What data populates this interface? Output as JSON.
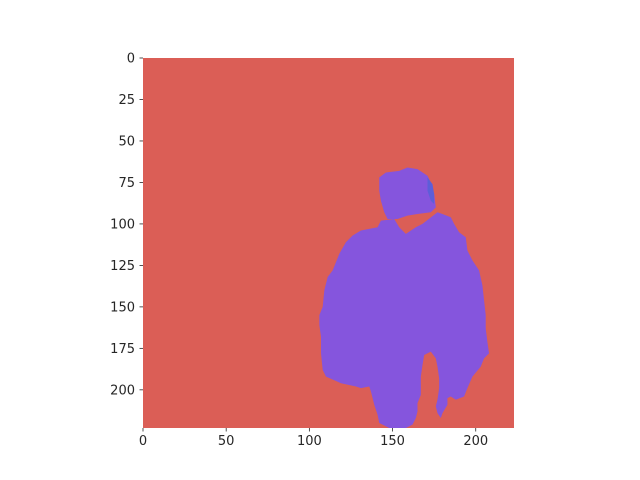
{
  "chart_data": {
    "type": "heatmap",
    "title": "",
    "xlabel": "",
    "ylabel": "",
    "xlim": [
      0,
      223
    ],
    "ylim": [
      223,
      0
    ],
    "y_axis_inverted": true,
    "x_ticks": [
      0,
      50,
      100,
      150,
      200
    ],
    "y_ticks": [
      0,
      25,
      50,
      75,
      100,
      125,
      150,
      175,
      200
    ],
    "grid": false,
    "legend": "none",
    "classes": [
      {
        "id": 0,
        "color": "#db5e56"
      },
      {
        "id": 1,
        "color": "#8555dd"
      },
      {
        "id": 2,
        "color": "#5d5ed8"
      }
    ],
    "regions": [
      {
        "class": 1,
        "polygon": [
          [
            141,
            102
          ],
          [
            143,
            98
          ],
          [
            151,
            97
          ],
          [
            154,
            102
          ],
          [
            158,
            106
          ],
          [
            164,
            102
          ],
          [
            168,
            100
          ],
          [
            177,
            93
          ],
          [
            180,
            94
          ],
          [
            185,
            96
          ],
          [
            187,
            100
          ],
          [
            190,
            105
          ],
          [
            194,
            108
          ],
          [
            195,
            116
          ],
          [
            198,
            122
          ],
          [
            202,
            128
          ],
          [
            204,
            137
          ],
          [
            205,
            146
          ],
          [
            206,
            155
          ],
          [
            206,
            163
          ],
          [
            207,
            171
          ],
          [
            208,
            178
          ],
          [
            205,
            181
          ],
          [
            203,
            186
          ],
          [
            198,
            192
          ],
          [
            195,
            199
          ],
          [
            193,
            204
          ],
          [
            188,
            206
          ],
          [
            185,
            204
          ],
          [
            183,
            205
          ],
          [
            183,
            209
          ],
          [
            180,
            214
          ],
          [
            179,
            217
          ],
          [
            177,
            214
          ],
          [
            176,
            210
          ],
          [
            177,
            206
          ],
          [
            178,
            199
          ],
          [
            178,
            193
          ],
          [
            177,
            186
          ],
          [
            176,
            181
          ],
          [
            173,
            177
          ],
          [
            169,
            179
          ],
          [
            168,
            185
          ],
          [
            167,
            192
          ],
          [
            167,
            199
          ],
          [
            167,
            203
          ],
          [
            165,
            208
          ],
          [
            165,
            213
          ],
          [
            164,
            217
          ],
          [
            162,
            221
          ],
          [
            158,
            223
          ],
          [
            148,
            223
          ],
          [
            142,
            220
          ],
          [
            141,
            215
          ],
          [
            139,
            209
          ],
          [
            137,
            201
          ],
          [
            136,
            198
          ],
          [
            131,
            199
          ],
          [
            128,
            198
          ],
          [
            119,
            196
          ],
          [
            110,
            192
          ],
          [
            108,
            188
          ],
          [
            107,
            178
          ],
          [
            107,
            168
          ],
          [
            106,
            161
          ],
          [
            106,
            155
          ],
          [
            108,
            150
          ],
          [
            109,
            140
          ],
          [
            111,
            132
          ],
          [
            114,
            128
          ],
          [
            118,
            118
          ],
          [
            122,
            111
          ],
          [
            126,
            107
          ],
          [
            131,
            104
          ],
          [
            136,
            103
          ]
        ]
      },
      {
        "class": 1,
        "polygon": [
          [
            142,
            72
          ],
          [
            146,
            69
          ],
          [
            154,
            68
          ],
          [
            159,
            66
          ],
          [
            165,
            67
          ],
          [
            171,
            71
          ],
          [
            173,
            75
          ],
          [
            175,
            82
          ],
          [
            176,
            90
          ],
          [
            173,
            93
          ],
          [
            165,
            94
          ],
          [
            159,
            95
          ],
          [
            153,
            97
          ],
          [
            147,
            97
          ],
          [
            145,
            93
          ],
          [
            143,
            86
          ],
          [
            142,
            80
          ]
        ]
      },
      {
        "class": 2,
        "polygon": [
          [
            171,
            72
          ],
          [
            174,
            76
          ],
          [
            175,
            82
          ],
          [
            175,
            88
          ],
          [
            173,
            86
          ],
          [
            171,
            80
          ]
        ]
      }
    ]
  }
}
